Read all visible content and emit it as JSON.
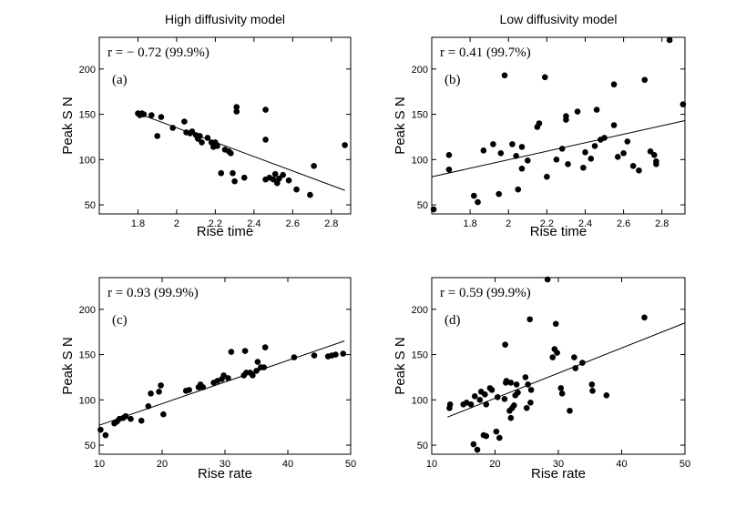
{
  "chart_data": [
    {
      "type": "scatter",
      "title": "High diffusivity model",
      "annotation": "r = − 0.72 (99.9%)",
      "panel_label": "(a)",
      "xlabel": "Rise time",
      "ylabel": "Peak S N",
      "xlim": [
        1.6,
        2.9
      ],
      "ylim": [
        40,
        235
      ],
      "xticks": [
        "1.8",
        "2",
        "2.2",
        "2.4",
        "2.6",
        "2.8"
      ],
      "xtick_values": [
        1.8,
        2.0,
        2.2,
        2.4,
        2.6,
        2.8
      ],
      "yticks": [
        "50",
        "100",
        "150",
        "200"
      ],
      "ytick_values": [
        50,
        100,
        150,
        200
      ],
      "fit_line": {
        "x": [
          1.8,
          2.87
        ],
        "y": [
          151,
          66
        ]
      },
      "points": [
        [
          1.8,
          151
        ],
        [
          1.81,
          149
        ],
        [
          1.82,
          151
        ],
        [
          1.83,
          150
        ],
        [
          1.87,
          149
        ],
        [
          1.9,
          126
        ],
        [
          1.92,
          147
        ],
        [
          1.98,
          135
        ],
        [
          2.04,
          142
        ],
        [
          2.05,
          130
        ],
        [
          2.07,
          129
        ],
        [
          2.08,
          131
        ],
        [
          2.1,
          127
        ],
        [
          2.11,
          123
        ],
        [
          2.12,
          126
        ],
        [
          2.13,
          119
        ],
        [
          2.16,
          124
        ],
        [
          2.18,
          119
        ],
        [
          2.19,
          114
        ],
        [
          2.2,
          119
        ],
        [
          2.21,
          115
        ],
        [
          2.23,
          85
        ],
        [
          2.25,
          111
        ],
        [
          2.27,
          109
        ],
        [
          2.28,
          107
        ],
        [
          2.29,
          85
        ],
        [
          2.3,
          76
        ],
        [
          2.31,
          158
        ],
        [
          2.31,
          153
        ],
        [
          2.35,
          80
        ],
        [
          2.46,
          155
        ],
        [
          2.46,
          122
        ],
        [
          2.46,
          78
        ],
        [
          2.48,
          80
        ],
        [
          2.5,
          78
        ],
        [
          2.51,
          84
        ],
        [
          2.52,
          74
        ],
        [
          2.53,
          79
        ],
        [
          2.55,
          83
        ],
        [
          2.58,
          77
        ],
        [
          2.62,
          67
        ],
        [
          2.69,
          61
        ],
        [
          2.71,
          93
        ],
        [
          2.87,
          116
        ]
      ]
    },
    {
      "type": "scatter",
      "title": "Low diffusivity model",
      "annotation": "r = 0.41 (99.7%)",
      "panel_label": "(b)",
      "xlabel": "Rise time",
      "ylabel": "Peak S N",
      "xlim": [
        1.6,
        2.92
      ],
      "ylim": [
        40,
        235
      ],
      "xticks": [
        "1.8",
        "2",
        "2.2",
        "2.4",
        "2.6",
        "2.8"
      ],
      "xtick_values": [
        1.8,
        2.0,
        2.2,
        2.4,
        2.6,
        2.8
      ],
      "yticks": [
        "50",
        "100",
        "150",
        "200"
      ],
      "ytick_values": [
        50,
        100,
        150,
        200
      ],
      "fit_line": {
        "x": [
          1.6,
          2.92
        ],
        "y": [
          81,
          143
        ]
      },
      "points": [
        [
          1.61,
          45
        ],
        [
          1.69,
          89
        ],
        [
          1.69,
          105
        ],
        [
          1.82,
          60
        ],
        [
          1.84,
          53
        ],
        [
          1.87,
          110
        ],
        [
          1.92,
          117
        ],
        [
          1.95,
          62
        ],
        [
          1.96,
          107
        ],
        [
          1.98,
          193
        ],
        [
          2.02,
          117
        ],
        [
          2.04,
          104
        ],
        [
          2.05,
          67
        ],
        [
          2.07,
          114
        ],
        [
          2.07,
          90
        ],
        [
          2.1,
          99
        ],
        [
          2.15,
          136
        ],
        [
          2.16,
          140
        ],
        [
          2.19,
          191
        ],
        [
          2.2,
          81
        ],
        [
          2.25,
          100
        ],
        [
          2.28,
          112
        ],
        [
          2.3,
          148
        ],
        [
          2.3,
          144
        ],
        [
          2.31,
          95
        ],
        [
          2.36,
          153
        ],
        [
          2.39,
          91
        ],
        [
          2.4,
          108
        ],
        [
          2.43,
          101
        ],
        [
          2.45,
          115
        ],
        [
          2.46,
          155
        ],
        [
          2.48,
          122
        ],
        [
          2.5,
          124
        ],
        [
          2.55,
          138
        ],
        [
          2.55,
          183
        ],
        [
          2.57,
          103
        ],
        [
          2.6,
          107
        ],
        [
          2.62,
          120
        ],
        [
          2.65,
          93
        ],
        [
          2.68,
          88
        ],
        [
          2.71,
          188
        ],
        [
          2.74,
          109
        ],
        [
          2.76,
          105
        ],
        [
          2.77,
          95
        ],
        [
          2.77,
          98
        ],
        [
          2.84,
          232
        ],
        [
          2.91,
          161
        ]
      ]
    },
    {
      "type": "scatter",
      "title": "",
      "annotation": "r = 0.93 (99.9%)",
      "panel_label": "(c)",
      "xlabel": "Rise rate",
      "ylabel": "Peak S N",
      "xlim": [
        10,
        50
      ],
      "ylim": [
        40,
        235
      ],
      "xticks": [
        "10",
        "20",
        "30",
        "40",
        "50"
      ],
      "xtick_values": [
        10,
        20,
        30,
        40,
        50
      ],
      "yticks": [
        "50",
        "100",
        "150",
        "200"
      ],
      "ytick_values": [
        50,
        100,
        150,
        200
      ],
      "fit_line": {
        "x": [
          10,
          49
        ],
        "y": [
          72,
          165
        ]
      },
      "points": [
        [
          10.2,
          67
        ],
        [
          11,
          61
        ],
        [
          12.4,
          74
        ],
        [
          12.8,
          76
        ],
        [
          13.2,
          79
        ],
        [
          13.8,
          80
        ],
        [
          14.2,
          82
        ],
        [
          15,
          79
        ],
        [
          16.7,
          77
        ],
        [
          17.8,
          93
        ],
        [
          18.2,
          107
        ],
        [
          19.5,
          109
        ],
        [
          19.8,
          116
        ],
        [
          20.2,
          84
        ],
        [
          23.8,
          110
        ],
        [
          24.3,
          111
        ],
        [
          25.8,
          114
        ],
        [
          26.1,
          117
        ],
        [
          26.5,
          114
        ],
        [
          28.2,
          119
        ],
        [
          28.8,
          121
        ],
        [
          29.5,
          123
        ],
        [
          29.8,
          127
        ],
        [
          30.5,
          124
        ],
        [
          31,
          153
        ],
        [
          33,
          127
        ],
        [
          33.2,
          154
        ],
        [
          33.4,
          130
        ],
        [
          34,
          130
        ],
        [
          34.4,
          127
        ],
        [
          35,
          132
        ],
        [
          35.2,
          142
        ],
        [
          35.7,
          136
        ],
        [
          36.2,
          136
        ],
        [
          36.4,
          158
        ],
        [
          41,
          147
        ],
        [
          44.2,
          149
        ],
        [
          46.4,
          148
        ],
        [
          47,
          149
        ],
        [
          47.6,
          150
        ],
        [
          48.8,
          151
        ]
      ]
    },
    {
      "type": "scatter",
      "title": "",
      "annotation": "r = 0.59 (99.9%)",
      "panel_label": "(d)",
      "xlabel": "Rise rate",
      "ylabel": "Peak S N",
      "xlim": [
        10,
        50
      ],
      "ylim": [
        40,
        235
      ],
      "xticks": [
        "10",
        "20",
        "30",
        "40",
        "50"
      ],
      "xtick_values": [
        10,
        20,
        30,
        40,
        50
      ],
      "yticks": [
        "50",
        "100",
        "150",
        "200"
      ],
      "ytick_values": [
        50,
        100,
        150,
        200
      ],
      "fit_line": {
        "x": [
          12.5,
          50
        ],
        "y": [
          81,
          185
        ]
      },
      "points": [
        [
          12.8,
          91
        ],
        [
          12.9,
          95
        ],
        [
          15,
          95
        ],
        [
          15.5,
          97
        ],
        [
          16.2,
          95
        ],
        [
          16.6,
          51
        ],
        [
          16.8,
          104
        ],
        [
          17.2,
          45
        ],
        [
          17.6,
          100
        ],
        [
          17.8,
          109
        ],
        [
          18.2,
          61
        ],
        [
          18.4,
          106
        ],
        [
          18.6,
          60
        ],
        [
          18.6,
          95
        ],
        [
          19.2,
          113
        ],
        [
          19.5,
          111
        ],
        [
          20.2,
          65
        ],
        [
          20.4,
          103
        ],
        [
          20.7,
          58
        ],
        [
          21.5,
          101
        ],
        [
          21.6,
          161
        ],
        [
          21.7,
          119
        ],
        [
          21.8,
          121
        ],
        [
          22.3,
          88
        ],
        [
          22.5,
          119
        ],
        [
          22.5,
          80
        ],
        [
          22.7,
          91
        ],
        [
          23,
          94
        ],
        [
          23.2,
          105
        ],
        [
          23.4,
          117
        ],
        [
          23.6,
          108
        ],
        [
          24.8,
          125
        ],
        [
          25,
          91
        ],
        [
          25.2,
          117
        ],
        [
          25.5,
          189
        ],
        [
          25.6,
          97
        ],
        [
          25.7,
          111
        ],
        [
          28.3,
          233
        ],
        [
          29.1,
          147
        ],
        [
          29.4,
          156
        ],
        [
          29.6,
          184
        ],
        [
          29.8,
          152
        ],
        [
          30.4,
          113
        ],
        [
          30.6,
          107
        ],
        [
          31.8,
          88
        ],
        [
          32.5,
          147
        ],
        [
          32.7,
          135
        ],
        [
          33.8,
          141
        ],
        [
          35.3,
          117
        ],
        [
          35.4,
          110
        ],
        [
          37.6,
          105
        ],
        [
          43.6,
          191
        ]
      ]
    }
  ]
}
